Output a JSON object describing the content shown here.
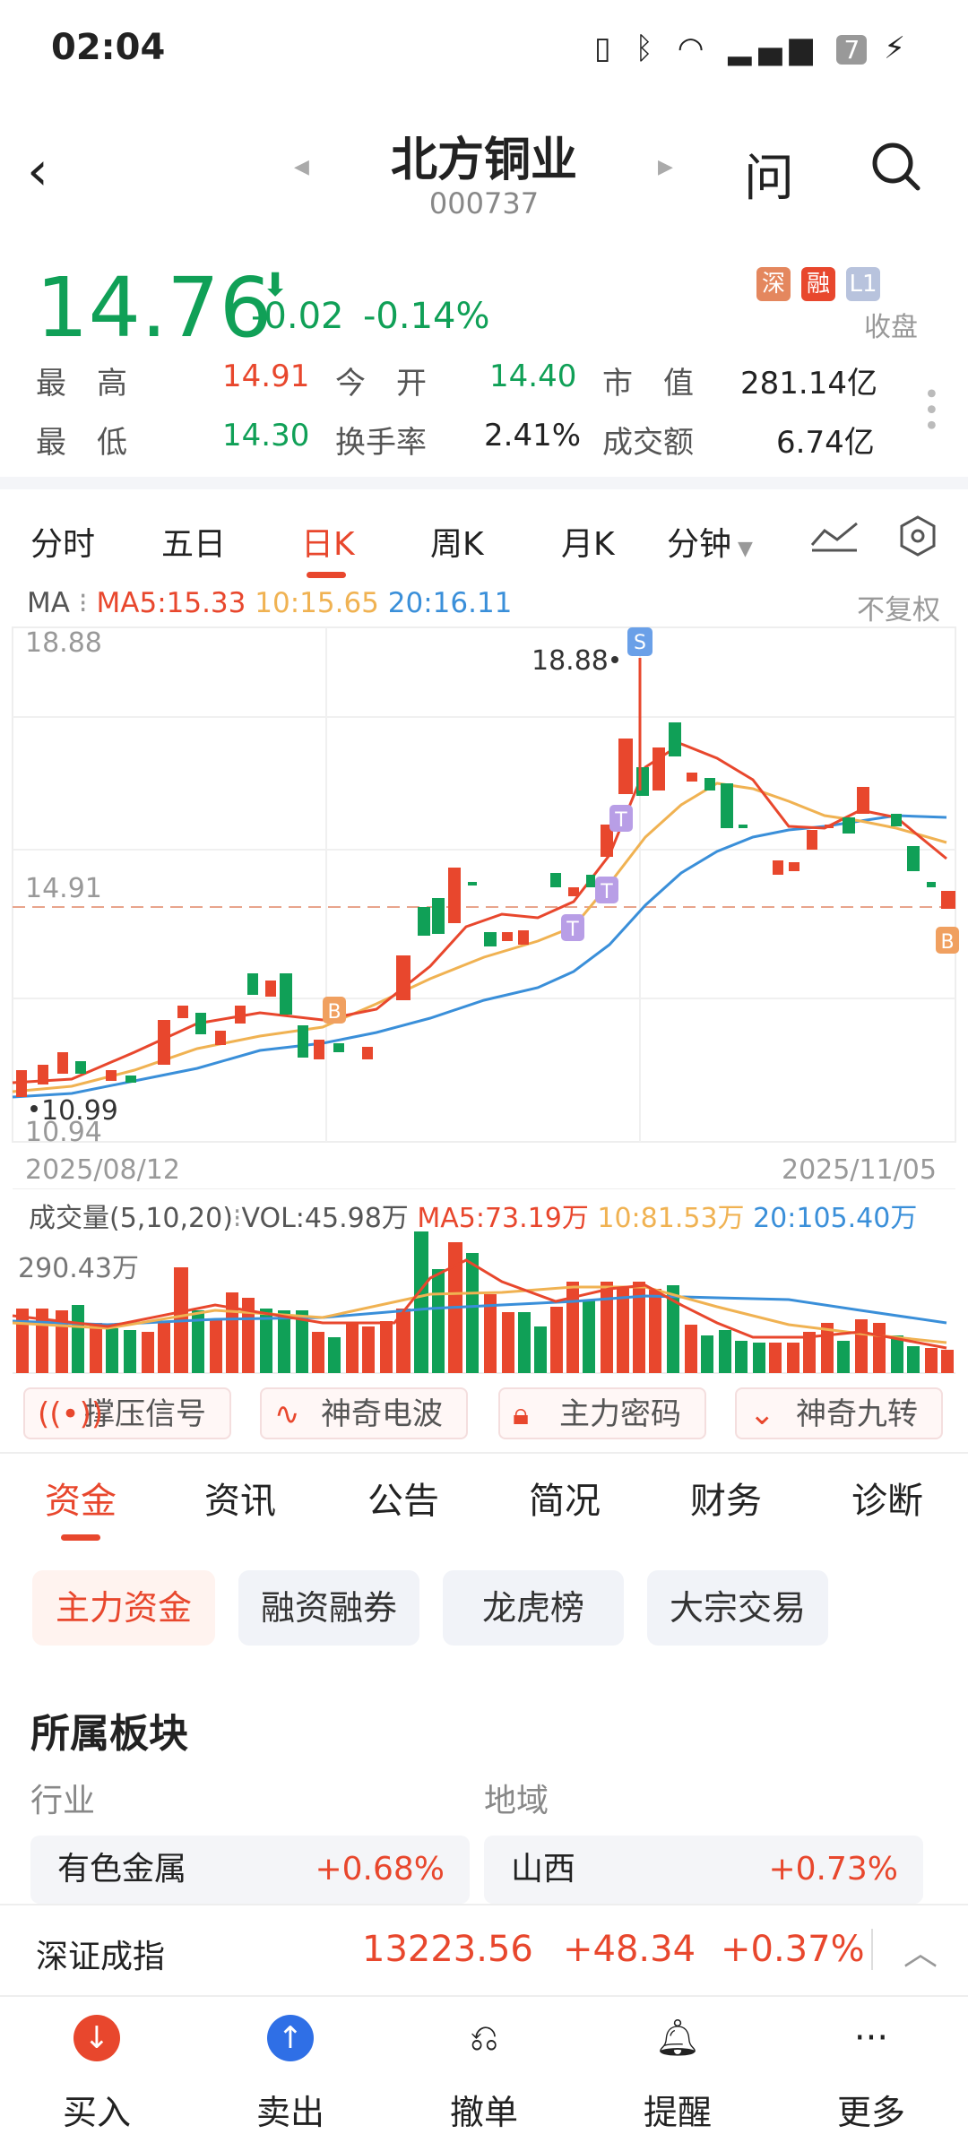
{
  "status": {
    "time": "02:04",
    "battery": "7"
  },
  "header": {
    "name": "北方铜业",
    "code": "000737",
    "ask": "问"
  },
  "quote": {
    "price": "14.76",
    "change": "-0.02",
    "change_pct": "-0.14%",
    "tags": [
      "深",
      "融",
      "L1"
    ],
    "state": "收盘",
    "high_label": "最　高",
    "high": "14.91",
    "open_label": "今　开",
    "open": "14.40",
    "mcap_label": "市　值",
    "mcap": "281.14亿",
    "low_label": "最　低",
    "low": "14.30",
    "turnover_label": "换手率",
    "turnover": "2.41%",
    "amount_label": "成交额",
    "amount": "6.74亿"
  },
  "chart_tabs": [
    "分时",
    "五日",
    "日K",
    "周K",
    "月K",
    "分钟"
  ],
  "ma": {
    "label": "MA",
    "ma5": "MA5:15.33",
    "ma10": "10:15.65",
    "ma20": "20:16.11",
    "adj": "不复权"
  },
  "kline": {
    "top": "18.88",
    "mid": "14.91",
    "bottom": "10.94",
    "peak": "18.88",
    "low_pt": "10.99",
    "date_start": "2025/08/12",
    "date_end": "2025/11/05"
  },
  "vol": {
    "label": "成交量(5,10,20)",
    "vol": "VOL:45.98万",
    "ma5": "MA5:73.19万",
    "ma10": "10:81.53万",
    "ma20": "20:105.40万",
    "max": "290.43万"
  },
  "features": [
    "撑压信号",
    "神奇电波",
    "主力密码",
    "神奇九转"
  ],
  "sections": [
    "资金",
    "资讯",
    "公告",
    "简况",
    "财务",
    "诊断"
  ],
  "pills": [
    "主力资金",
    "融资融券",
    "龙虎榜",
    "大宗交易"
  ],
  "blocks": {
    "title": "所属板块",
    "industry_label": "行业",
    "region_label": "地域",
    "industry": "有色金属",
    "industry_pct": "+0.68%",
    "region": "山西",
    "region_pct": "+0.73%"
  },
  "index": {
    "name": "深证成指",
    "value": "13223.56",
    "change": "+48.34",
    "pct": "+0.37%"
  },
  "nav": [
    "买入",
    "卖出",
    "撤单",
    "提醒",
    "更多"
  ],
  "colors": {
    "up": "#e8472d",
    "down": "#10a057",
    "ma5": "#e8472d",
    "ma10": "#f0b252",
    "ma20": "#3a8fd9"
  }
}
